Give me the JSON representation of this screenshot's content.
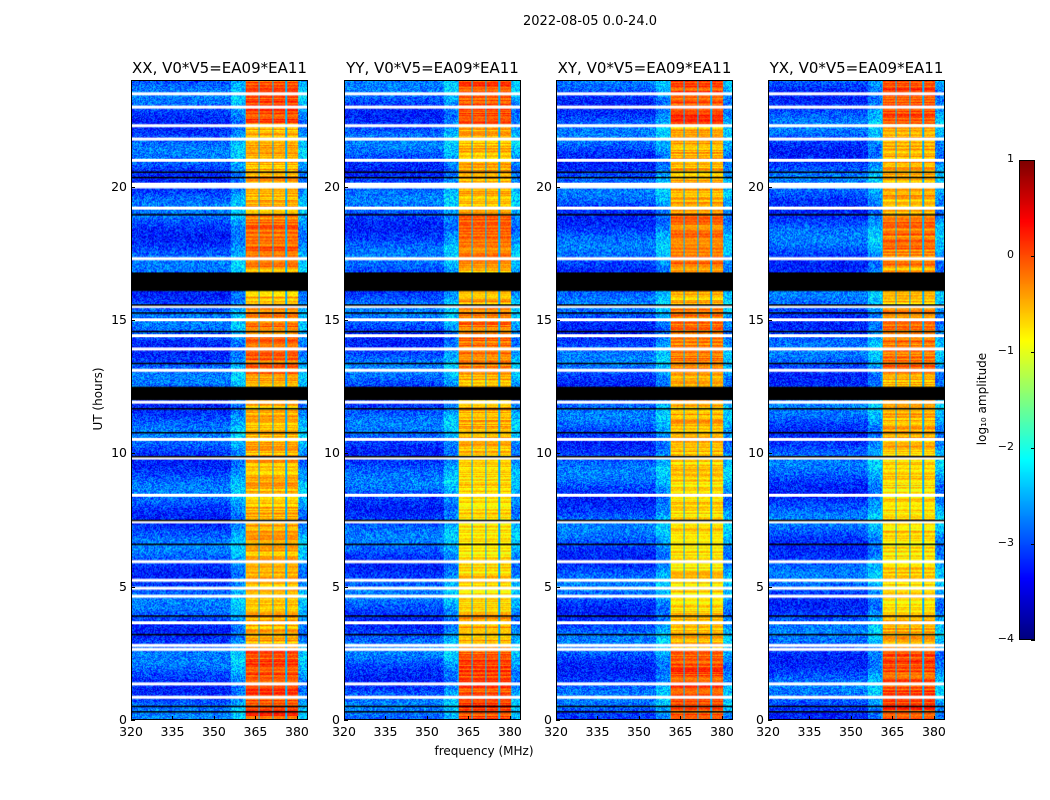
{
  "chart_data": {
    "type": "heatmap",
    "suptitle": "2022-08-05 0.0-24.0",
    "xlabel": "frequency (MHz)",
    "ylabel": "UT (hours)",
    "xlim": [
      320,
      384
    ],
    "ylim": [
      0,
      24
    ],
    "xticks": [
      "320",
      "335",
      "350",
      "365",
      "380"
    ],
    "xtick_values": [
      320,
      335,
      350,
      365,
      380
    ],
    "yticks": [
      "0",
      "5",
      "10",
      "15",
      "20"
    ],
    "ytick_values": [
      0,
      5,
      10,
      15,
      20
    ],
    "panels": [
      {
        "title": "XX, V0*V5=EA09*EA11"
      },
      {
        "title": "YY, V0*V5=EA09*EA11"
      },
      {
        "title": "XY, V0*V5=EA09*EA11"
      },
      {
        "title": "YX, V0*V5=EA09*EA11"
      }
    ],
    "colorbar": {
      "label": "log₁₀ amplitude",
      "range": [
        -4,
        1
      ],
      "ticks": [
        "1",
        "0",
        "−1",
        "−2",
        "−3",
        "−4"
      ],
      "tick_values": [
        1,
        0,
        -1,
        -2,
        -3,
        -4
      ],
      "colormap": "jet"
    },
    "strong_band_mhz": [
      361,
      380.7
    ],
    "background_level": -3,
    "band_level": -0.5,
    "flagged_hours_white": [
      0.8,
      1.3,
      2.6,
      2.75,
      3.6,
      4.6,
      4.9,
      5.2,
      5.9,
      7.4,
      8.4,
      9.8,
      10.5,
      11.9,
      13.1,
      13.9,
      14.4,
      15.0,
      15.5,
      17.3,
      19.2,
      20.0,
      20.1,
      21.0,
      21.8,
      22.3,
      23.0,
      23.5
    ],
    "flagged_hours_black": [
      0.3,
      0.5,
      3.2,
      3.9,
      6.6,
      7.5,
      9.9,
      10.8,
      11.7,
      13.4,
      14.6,
      15.3,
      15.6,
      19.0,
      20.4,
      20.6
    ],
    "blank_blocks_hours": [
      [
        16.1,
        16.8
      ],
      [
        12.0,
        12.5
      ]
    ]
  }
}
